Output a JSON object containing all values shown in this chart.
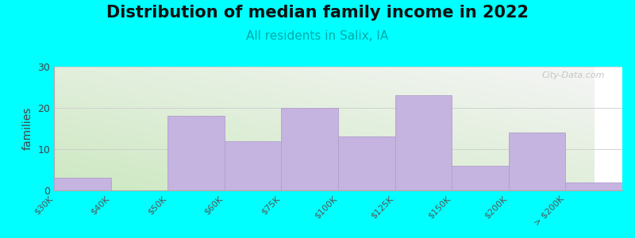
{
  "title": "Distribution of median family income in 2022",
  "subtitle": "All residents in Salix, IA",
  "ylabel": "families",
  "background_color": "#00FFFF",
  "bar_color": "#c5b3e0",
  "bar_edge_color": "#b0a0cc",
  "bin_edges": [
    0,
    1,
    2,
    3,
    4,
    5,
    6,
    7,
    8,
    9,
    10
  ],
  "values": [
    3,
    0,
    18,
    12,
    20,
    13,
    23,
    6,
    14,
    2
  ],
  "tick_labels": [
    "$30K",
    "$40K",
    "$50K",
    "$60K",
    "$75K",
    "$100K",
    "$125K",
    "$150K",
    "$200K",
    "> $200K"
  ],
  "tick_positions": [
    0,
    1,
    2,
    3,
    4,
    5,
    6,
    7,
    8,
    9
  ],
  "ylim": [
    0,
    30
  ],
  "yticks": [
    0,
    10,
    20,
    30
  ],
  "watermark": "City-Data.com",
  "title_fontsize": 15,
  "subtitle_fontsize": 11,
  "ylabel_fontsize": 10,
  "bg_colors": [
    "#cce8c0",
    "#f0f0ee"
  ],
  "grid_color": "#cccccc"
}
